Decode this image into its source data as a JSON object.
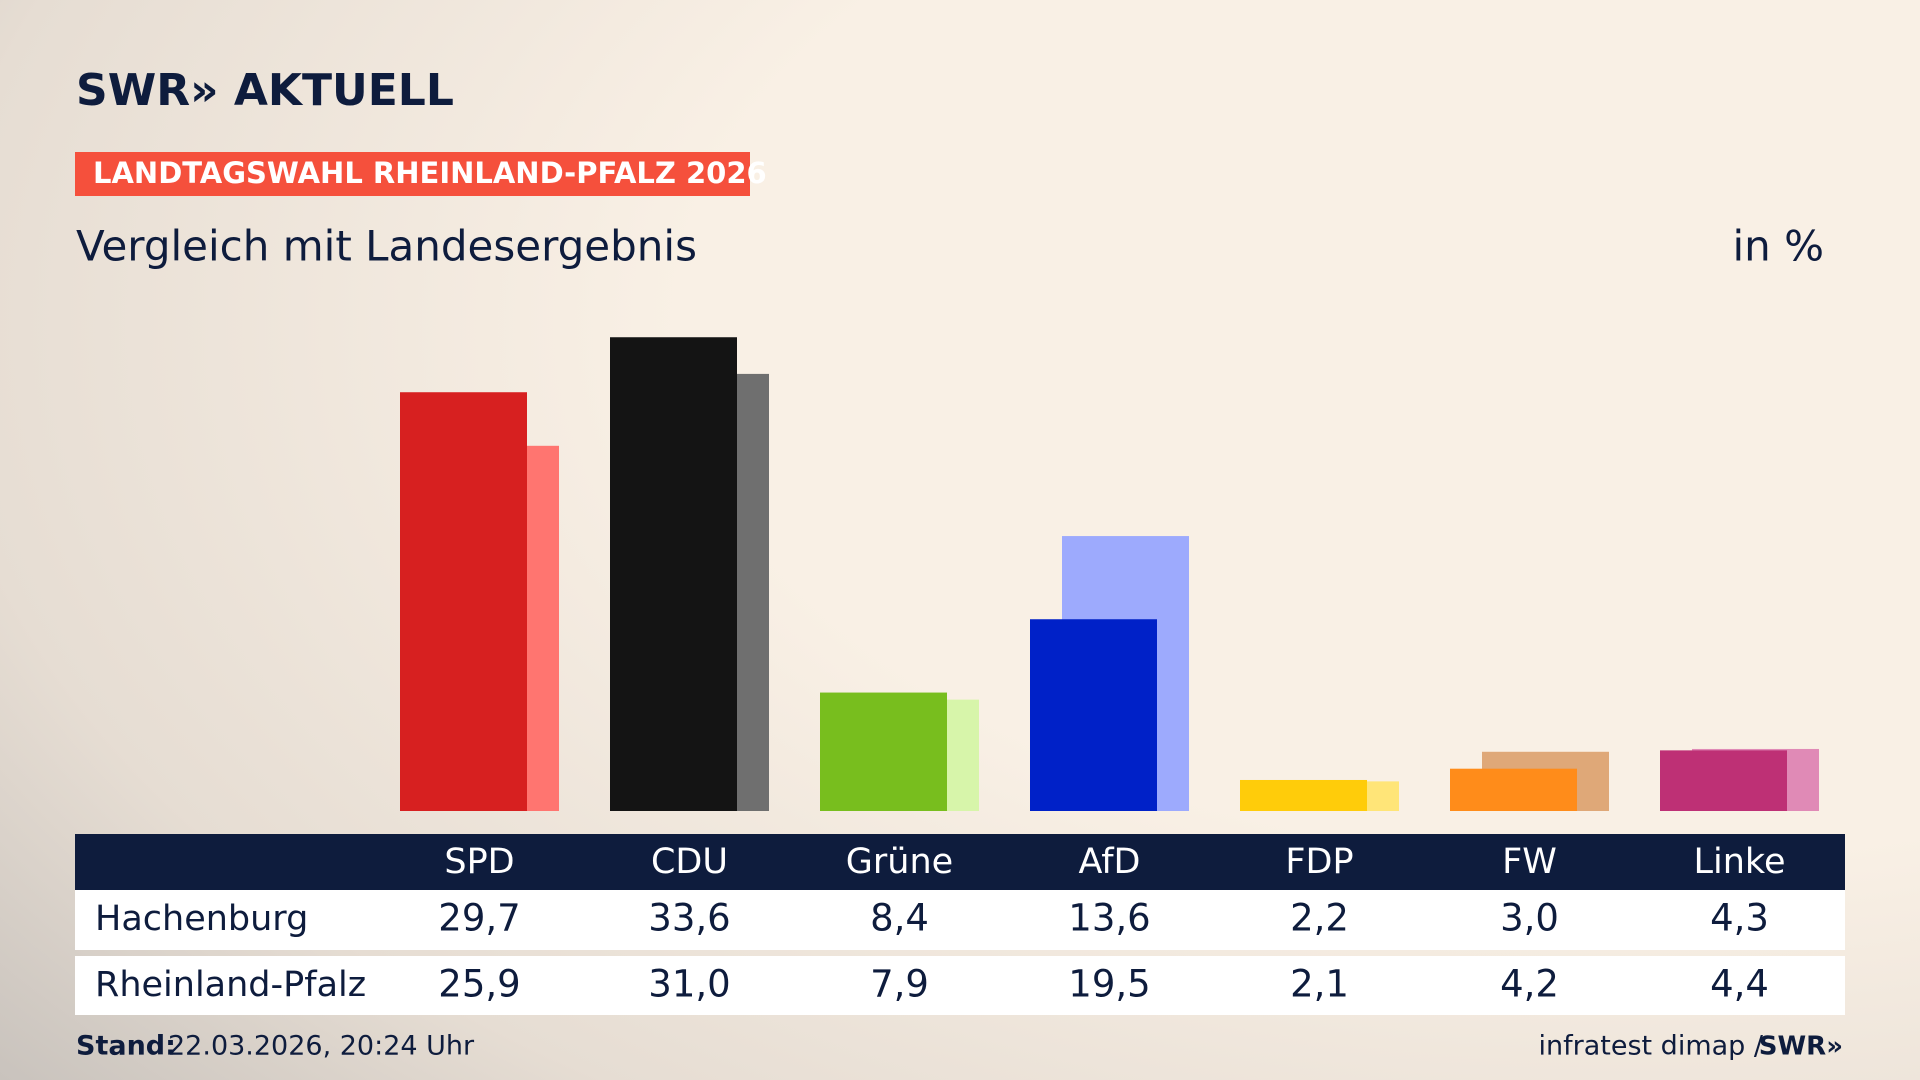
{
  "brand": "SWR» AKTUELL",
  "tag": "LANDTAGSWAHL RHEINLAND-PFALZ 2026",
  "footer": {
    "stand_label": "Stand:",
    "stand": "22.03.2026, 20:24 Uhr",
    "source": "infratest dimap /",
    "logo": "SWR»"
  },
  "chart_data": {
    "type": "bar",
    "title": "Vergleich mit Landesergebnis",
    "unit": "in %",
    "categories": [
      "SPD",
      "CDU",
      "Grüne",
      "AfD",
      "FDP",
      "FW",
      "Linke"
    ],
    "series": [
      {
        "name": "Hachenburg",
        "values": [
          29.7,
          33.6,
          8.4,
          13.6,
          2.2,
          3.0,
          4.3
        ],
        "value_labels": [
          "29,7",
          "33,6",
          "8,4",
          "13,6",
          "2,2",
          "3,0",
          "4,3"
        ],
        "colors": [
          "#d72020",
          "#141414",
          "#78be1e",
          "#0021c8",
          "#ffcc0a",
          "#ff8c1a",
          "#be3075"
        ]
      },
      {
        "name": "Rheinland-Pfalz",
        "values": [
          25.9,
          31.0,
          7.9,
          19.5,
          2.1,
          4.2,
          4.4
        ],
        "value_labels": [
          "25,9",
          "31,0",
          "7,9",
          "19,5",
          "2,1",
          "4,2",
          "4,4"
        ],
        "colors": [
          "#ff7570",
          "#6f6f6f",
          "#d7f5aa",
          "#9daafd",
          "#ffe578",
          "#dfa878",
          "#e08ab6"
        ]
      }
    ]
  }
}
